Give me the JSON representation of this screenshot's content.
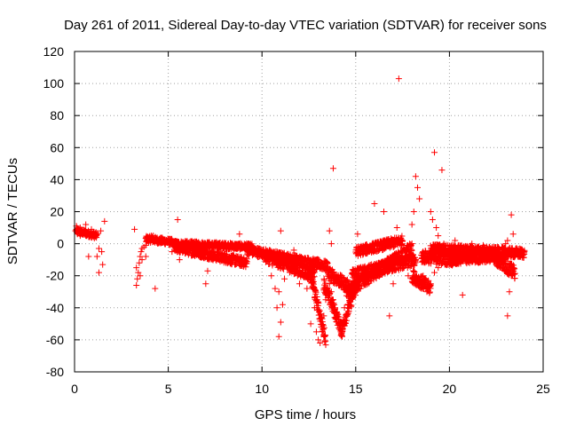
{
  "chart_data": {
    "type": "scatter",
    "title": "Day 261 of 2011, Sidereal Day-to-day VTEC variation (SDTVAR) for receiver sons",
    "xlabel": "GPS time / hours",
    "ylabel": "SDTVAR / TECUs",
    "xlim": [
      0,
      25
    ],
    "ylim": [
      -80,
      120
    ],
    "xticks": [
      0,
      5,
      10,
      15,
      20,
      25
    ],
    "yticks": [
      -80,
      -60,
      -40,
      -20,
      0,
      20,
      40,
      60,
      80,
      100,
      120
    ],
    "grid": true,
    "marker": "+",
    "color": "#ff0000",
    "series": [
      {
        "name": "SDTVAR",
        "points": [
          [
            0.05,
            8
          ],
          [
            0.1,
            9
          ],
          [
            0.15,
            6
          ],
          [
            0.2,
            8
          ],
          [
            0.25,
            7
          ],
          [
            0.3,
            5
          ],
          [
            0.35,
            8
          ],
          [
            0.4,
            6
          ],
          [
            0.5,
            7
          ],
          [
            0.6,
            5
          ],
          [
            0.7,
            7
          ],
          [
            0.8,
            6
          ],
          [
            0.9,
            4
          ],
          [
            1.0,
            6
          ],
          [
            1.1,
            5
          ],
          [
            0.1,
            11
          ],
          [
            0.3,
            10
          ],
          [
            0.6,
            12
          ],
          [
            0.9,
            9
          ],
          [
            1.2,
            -8
          ],
          [
            0.75,
            -8
          ],
          [
            1.3,
            -18
          ],
          [
            1.5,
            -13
          ],
          [
            1.6,
            14
          ],
          [
            1.4,
            8
          ],
          [
            1.3,
            -3
          ],
          [
            1.45,
            -5
          ],
          [
            3.2,
            9
          ],
          [
            3.3,
            -26
          ],
          [
            3.35,
            -22
          ],
          [
            3.4,
            -18
          ],
          [
            3.45,
            -12
          ],
          [
            3.5,
            -8
          ],
          [
            3.55,
            -5
          ],
          [
            3.6,
            -3
          ],
          [
            3.7,
            -2
          ],
          [
            3.8,
            -1
          ],
          [
            3.9,
            2
          ],
          [
            4.0,
            4
          ],
          [
            4.1,
            5
          ],
          [
            4.2,
            5
          ],
          [
            4.3,
            4
          ],
          [
            4.4,
            3
          ],
          [
            4.6,
            2
          ],
          [
            4.8,
            1
          ],
          [
            5.0,
            1
          ],
          [
            4.3,
            -28
          ],
          [
            3.3,
            -15
          ],
          [
            3.5,
            -20
          ],
          [
            3.6,
            -10
          ],
          [
            3.8,
            -8
          ],
          [
            5.2,
            -5
          ],
          [
            5.4,
            -3
          ],
          [
            5.5,
            15
          ],
          [
            5.6,
            -10
          ],
          [
            5.7,
            -4
          ],
          [
            5.8,
            -2
          ],
          [
            6.0,
            -1
          ],
          [
            6.2,
            -1
          ],
          [
            6.5,
            -2
          ],
          [
            6.8,
            -2
          ],
          [
            7.0,
            -1
          ],
          [
            7.0,
            -25
          ],
          [
            7.1,
            -17
          ],
          [
            7.0,
            0
          ],
          [
            7.3,
            -1
          ],
          [
            7.6,
            -1
          ],
          [
            7.9,
            -1
          ],
          [
            8.0,
            -2
          ],
          [
            8.3,
            -2
          ],
          [
            8.6,
            -3
          ],
          [
            8.8,
            6
          ],
          [
            8.9,
            -3
          ],
          [
            9.2,
            -4
          ],
          [
            9.5,
            -5
          ],
          [
            9.8,
            -4
          ],
          [
            10.1,
            -5
          ],
          [
            10.4,
            -6
          ],
          [
            10.7,
            -7
          ],
          [
            11.0,
            -8
          ],
          [
            11.3,
            -9
          ],
          [
            11.6,
            -10
          ],
          [
            11.9,
            -9
          ],
          [
            12.2,
            -11
          ],
          [
            11.7,
            -4
          ],
          [
            11.8,
            -15
          ],
          [
            11.9,
            -20
          ],
          [
            12.0,
            -25
          ],
          [
            12.2,
            -20
          ],
          [
            12.4,
            -28
          ],
          [
            12.6,
            -10
          ],
          [
            12.9,
            -16
          ],
          [
            13.1,
            -13
          ],
          [
            13.3,
            -28
          ],
          [
            10.5,
            -20
          ],
          [
            10.7,
            -28
          ],
          [
            10.8,
            -40
          ],
          [
            10.9,
            -58
          ],
          [
            11.0,
            -49
          ],
          [
            11.1,
            -38
          ],
          [
            10.9,
            -30
          ],
          [
            11.0,
            8
          ],
          [
            11.2,
            -22
          ],
          [
            12.6,
            -50
          ],
          [
            12.8,
            -40
          ],
          [
            12.9,
            -55
          ],
          [
            13.0,
            -60
          ],
          [
            13.1,
            -62
          ],
          [
            13.2,
            -55
          ],
          [
            13.3,
            -45
          ],
          [
            13.4,
            -35
          ],
          [
            13.6,
            -25
          ],
          [
            13.7,
            -30
          ],
          [
            13.8,
            -35
          ],
          [
            13.9,
            -40
          ],
          [
            14.0,
            -45
          ],
          [
            14.1,
            -50
          ],
          [
            14.2,
            -55
          ],
          [
            14.3,
            -50
          ],
          [
            14.4,
            -40
          ],
          [
            14.5,
            -30
          ],
          [
            14.7,
            -28
          ],
          [
            14.9,
            -25
          ],
          [
            15.1,
            -22
          ],
          [
            15.3,
            -20
          ],
          [
            13.8,
            47
          ],
          [
            13.7,
            0
          ],
          [
            13.6,
            8
          ],
          [
            15.1,
            6
          ],
          [
            16.0,
            25
          ],
          [
            16.5,
            20
          ],
          [
            16.8,
            -45
          ],
          [
            17.0,
            -25
          ],
          [
            17.3,
            103
          ],
          [
            17.2,
            10
          ],
          [
            17.8,
            -20
          ],
          [
            15.5,
            -18
          ],
          [
            16.0,
            -15
          ],
          [
            16.5,
            -12
          ],
          [
            17.0,
            -10
          ],
          [
            17.5,
            -9
          ],
          [
            18.0,
            -8
          ],
          [
            18.3,
            -22
          ],
          [
            18.4,
            -25
          ],
          [
            18.5,
            -28
          ],
          [
            18.6,
            -20
          ],
          [
            18.7,
            -10
          ],
          [
            18.2,
            42
          ],
          [
            18.3,
            35
          ],
          [
            18.4,
            28
          ],
          [
            18.1,
            20
          ],
          [
            18.0,
            12
          ],
          [
            19.0,
            20
          ],
          [
            19.1,
            15
          ],
          [
            19.2,
            57
          ],
          [
            19.3,
            10
          ],
          [
            19.4,
            5
          ],
          [
            19.6,
            46
          ],
          [
            19.7,
            0
          ],
          [
            18.8,
            -30
          ],
          [
            19.0,
            -25
          ],
          [
            19.2,
            -18
          ],
          [
            19.4,
            -15
          ],
          [
            19.6,
            -12
          ],
          [
            19.8,
            -10
          ],
          [
            20.2,
            -9
          ],
          [
            20.5,
            -8
          ],
          [
            20.7,
            -32
          ],
          [
            21.0,
            -8
          ],
          [
            21.5,
            -7
          ],
          [
            22.0,
            -7
          ],
          [
            22.5,
            -6
          ],
          [
            20.3,
            2
          ],
          [
            20.5,
            -1
          ],
          [
            21.2,
            0
          ],
          [
            21.8,
            -1
          ],
          [
            22.3,
            -2
          ],
          [
            22.8,
            -2
          ],
          [
            23.0,
            -5
          ],
          [
            23.1,
            -45
          ],
          [
            23.2,
            -30
          ],
          [
            23.3,
            -20
          ],
          [
            23.4,
            -15
          ],
          [
            23.5,
            -8
          ],
          [
            23.6,
            -6
          ],
          [
            23.8,
            -5
          ],
          [
            24.0,
            -5
          ],
          [
            23.0,
            0
          ],
          [
            23.1,
            2
          ],
          [
            23.3,
            18
          ],
          [
            23.4,
            6
          ]
        ],
        "bands": [
          {
            "from_x": 0.1,
            "to_x": 1.2,
            "from_y": 8,
            "to_y": 5,
            "spread": 2
          },
          {
            "from_x": 3.8,
            "to_x": 5.2,
            "from_y": 3,
            "to_y": 1,
            "spread": 2
          },
          {
            "from_x": 5.2,
            "to_x": 9.5,
            "from_y": 0,
            "to_y": -2,
            "spread": 2
          },
          {
            "from_x": 5.3,
            "to_x": 9.2,
            "from_y": -2,
            "to_y": -12,
            "spread": 3
          },
          {
            "from_x": 9.2,
            "to_x": 13.5,
            "from_y": -4,
            "to_y": -14,
            "spread": 3
          },
          {
            "from_x": 10.2,
            "to_x": 12.8,
            "from_y": -8,
            "to_y": -20,
            "spread": 4
          },
          {
            "from_x": 12.6,
            "to_x": 13.4,
            "from_y": -20,
            "to_y": -60,
            "spread": 4
          },
          {
            "from_x": 13.3,
            "to_x": 14.3,
            "from_y": -25,
            "to_y": -55,
            "spread": 4
          },
          {
            "from_x": 14.2,
            "to_x": 15.2,
            "from_y": -55,
            "to_y": -20,
            "spread": 4
          },
          {
            "from_x": 13.5,
            "to_x": 15.0,
            "from_y": -18,
            "to_y": -30,
            "spread": 4
          },
          {
            "from_x": 14.5,
            "to_x": 18.0,
            "from_y": -30,
            "to_y": -3,
            "spread": 4
          },
          {
            "from_x": 14.8,
            "to_x": 18.2,
            "from_y": -20,
            "to_y": -10,
            "spread": 4
          },
          {
            "from_x": 15.0,
            "to_x": 17.5,
            "from_y": -5,
            "to_y": 2,
            "spread": 3
          },
          {
            "from_x": 18.0,
            "to_x": 19.0,
            "from_y": -20,
            "to_y": -28,
            "spread": 4
          },
          {
            "from_x": 18.5,
            "to_x": 20.5,
            "from_y": -8,
            "to_y": -10,
            "spread": 4
          },
          {
            "from_x": 19.0,
            "to_x": 24.0,
            "from_y": -3,
            "to_y": -6,
            "spread": 3
          },
          {
            "from_x": 20.0,
            "to_x": 23.0,
            "from_y": -10,
            "to_y": -8,
            "spread": 3
          },
          {
            "from_x": 22.5,
            "to_x": 23.5,
            "from_y": -10,
            "to_y": -18,
            "spread": 4
          }
        ]
      }
    ]
  }
}
